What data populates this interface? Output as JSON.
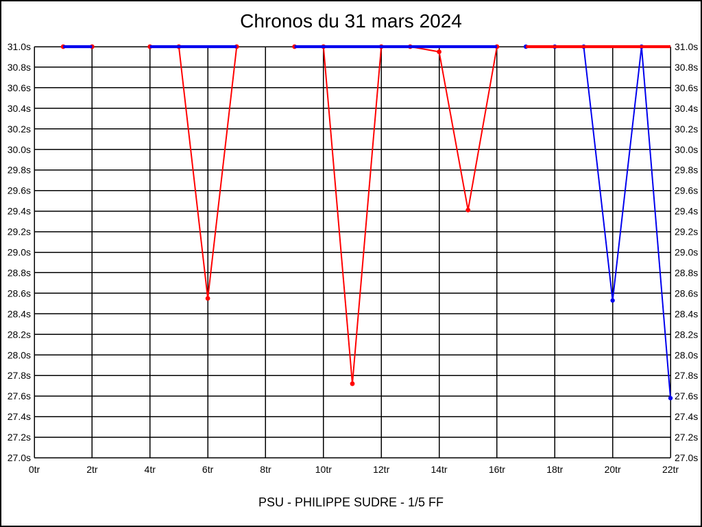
{
  "chart_data": {
    "type": "line",
    "title": "Chronos du 31 mars 2024",
    "caption": "PSU - PHILIPPE SUDRE - 1/5 FF",
    "xlabel": "",
    "ylabel": "",
    "xlim": [
      0,
      22
    ],
    "ylim": [
      27.0,
      31.0
    ],
    "grid": true,
    "legend": "none",
    "x_tick_values": [
      0,
      2,
      4,
      6,
      8,
      10,
      12,
      14,
      16,
      18,
      20,
      22
    ],
    "x_tick_labels": [
      "0tr",
      "2tr",
      "4tr",
      "6tr",
      "8tr",
      "10tr",
      "12tr",
      "14tr",
      "16tr",
      "18tr",
      "20tr",
      "22tr"
    ],
    "y_tick_values": [
      31.0,
      30.8,
      30.6,
      30.4,
      30.2,
      30.0,
      29.8,
      29.6,
      29.4,
      29.2,
      29.0,
      28.8,
      28.6,
      28.4,
      28.2,
      28.0,
      27.8,
      27.6,
      27.4,
      27.2,
      27.0
    ],
    "y_tick_labels": [
      "31.0s",
      "30.8s",
      "30.6s",
      "30.4s",
      "30.2s",
      "30.0s",
      "29.8s",
      "29.6s",
      "29.4s",
      "29.2s",
      "29.0s",
      "28.8s",
      "28.6s",
      "28.4s",
      "28.2s",
      "28.0s",
      "27.8s",
      "27.6s",
      "27.4s",
      "27.2s",
      "27.0s"
    ],
    "series": [
      {
        "name": "red",
        "color": "#ff0000",
        "segments": [
          {
            "x": [
              1,
              2
            ],
            "y": [
              31.0,
              31.0
            ]
          },
          {
            "x": [
              4,
              5,
              6,
              7
            ],
            "y": [
              31.0,
              31.0,
              28.55,
              31.0
            ]
          },
          {
            "x": [
              9,
              10,
              11,
              12,
              13,
              14,
              15,
              16
            ],
            "y": [
              31.0,
              31.0,
              27.72,
              31.0,
              31.0,
              30.95,
              29.41,
              31.0
            ]
          },
          {
            "x": [
              17,
              18,
              19,
              20,
              21,
              22
            ],
            "y": [
              31.0,
              31.0,
              31.0,
              31.0,
              31.0,
              31.0
            ]
          }
        ]
      },
      {
        "name": "blue",
        "color": "#0000ee",
        "segments": [
          {
            "x": [
              1,
              2
            ],
            "y": [
              31.0,
              31.0
            ]
          },
          {
            "x": [
              4,
              5,
              6,
              7
            ],
            "y": [
              31.0,
              31.0,
              31.0,
              31.0
            ]
          },
          {
            "x": [
              9,
              10,
              11,
              12,
              13,
              14,
              15,
              16
            ],
            "y": [
              31.0,
              31.0,
              31.0,
              31.0,
              31.0,
              31.0,
              31.0,
              31.0
            ]
          },
          {
            "x": [
              17,
              18,
              19,
              20,
              21,
              22
            ],
            "y": [
              31.0,
              31.0,
              31.0,
              28.53,
              31.0,
              27.58
            ]
          }
        ]
      }
    ]
  }
}
